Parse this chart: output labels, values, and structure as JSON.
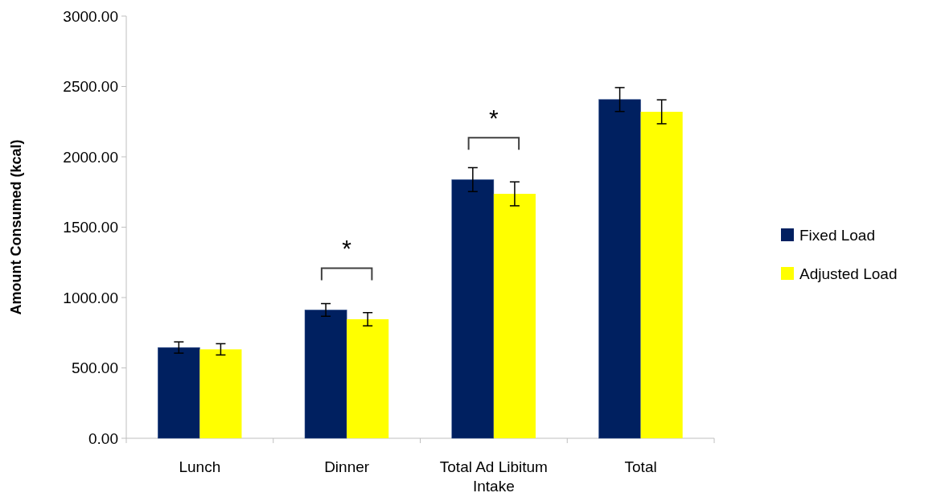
{
  "chart_data": {
    "type": "bar",
    "ylabel": "Amount Consumed (kcal)",
    "categories": [
      "Lunch",
      "Dinner",
      "Total Ad Libitum Intake",
      "Total"
    ],
    "series": [
      {
        "name": "Fixed Load",
        "color": "#002060",
        "values": [
          645,
          912,
          1838,
          2407
        ],
        "errors": [
          40,
          45,
          85,
          85
        ]
      },
      {
        "name": "Adjusted Load",
        "color": "#ffff00",
        "values": [
          632,
          846,
          1737,
          2320
        ],
        "errors": [
          40,
          47,
          85,
          85
        ]
      }
    ],
    "ylim": [
      0,
      3000
    ],
    "yticks": [
      {
        "value": 0,
        "label": "0.00"
      },
      {
        "value": 500,
        "label": "500.00"
      },
      {
        "value": 1000,
        "label": "1000.00"
      },
      {
        "value": 1500,
        "label": "1500.00"
      },
      {
        "value": 2000,
        "label": "2000.00"
      },
      {
        "value": 2500,
        "label": "2500.00"
      },
      {
        "value": 3000,
        "label": "3000.00"
      }
    ],
    "grid": false,
    "legend": "right",
    "annotations": [
      {
        "text": "*",
        "x": "Dinner",
        "y": 912
      },
      {
        "text": "*",
        "x": "Total Ad Libitum Intake",
        "y": 1838
      }
    ]
  }
}
